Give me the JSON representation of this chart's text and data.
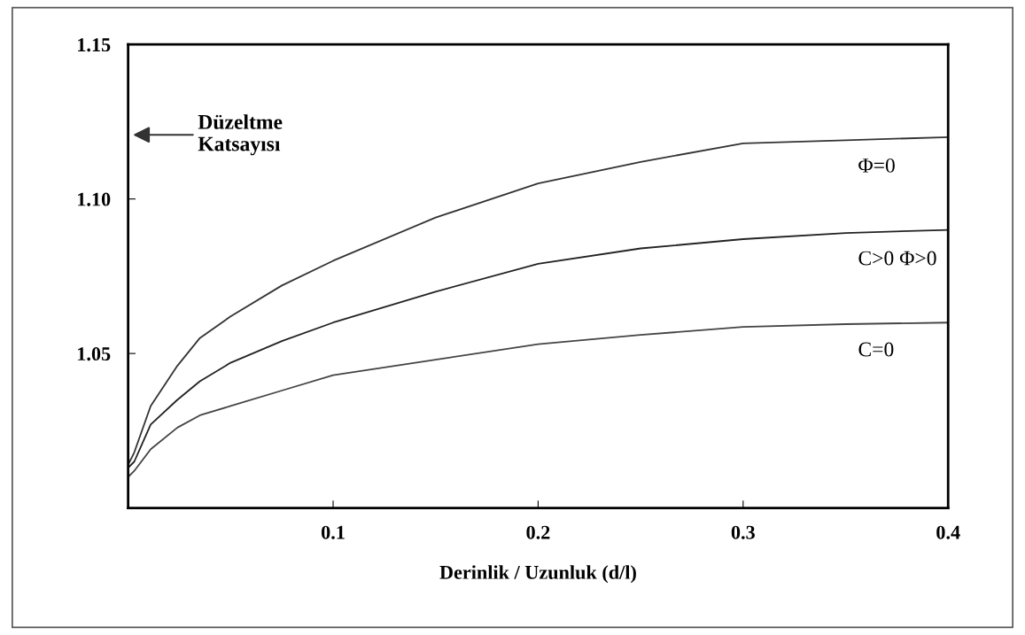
{
  "chart_data": {
    "type": "line",
    "xlabel": "Derinlik / Uzunluk (d/l)",
    "annotations": [
      "Düzeltme\nKatsayısı"
    ],
    "xlim": [
      0,
      0.4
    ],
    "ylim": [
      1.0,
      1.15
    ],
    "xticks": [
      0.1,
      0.2,
      0.3,
      0.4
    ],
    "yticks": [
      {
        "value": 1.05,
        "label": "1.05"
      },
      {
        "value": 1.1,
        "label": "1.10"
      },
      {
        "value": 1.15,
        "label": "1.15"
      }
    ],
    "grid": false,
    "legend": false,
    "marker": "none",
    "line_style": "solid",
    "x": [
      0.0,
      0.003,
      0.011,
      0.024,
      0.035,
      0.05,
      0.075,
      0.1,
      0.15,
      0.2,
      0.25,
      0.3,
      0.35,
      0.4
    ],
    "series": [
      {
        "name": "Φ=0",
        "color": "#333333",
        "values": [
          1.014,
          1.018,
          1.033,
          1.046,
          1.055,
          1.062,
          1.072,
          1.08,
          1.094,
          1.105,
          1.112,
          1.118,
          1.119,
          1.12
        ]
      },
      {
        "name": "C>0 Φ>0",
        "color": "#222222",
        "values": [
          1.013,
          1.015,
          1.027,
          1.035,
          1.041,
          1.047,
          1.054,
          1.06,
          1.07,
          1.079,
          1.084,
          1.087,
          1.089,
          1.09
        ]
      },
      {
        "name": "C=0",
        "color": "#444444",
        "values": [
          1.01,
          1.012,
          1.019,
          1.026,
          1.03,
          1.033,
          1.038,
          1.043,
          1.048,
          1.053,
          1.056,
          1.0586,
          1.0595,
          1.06
        ]
      }
    ]
  }
}
